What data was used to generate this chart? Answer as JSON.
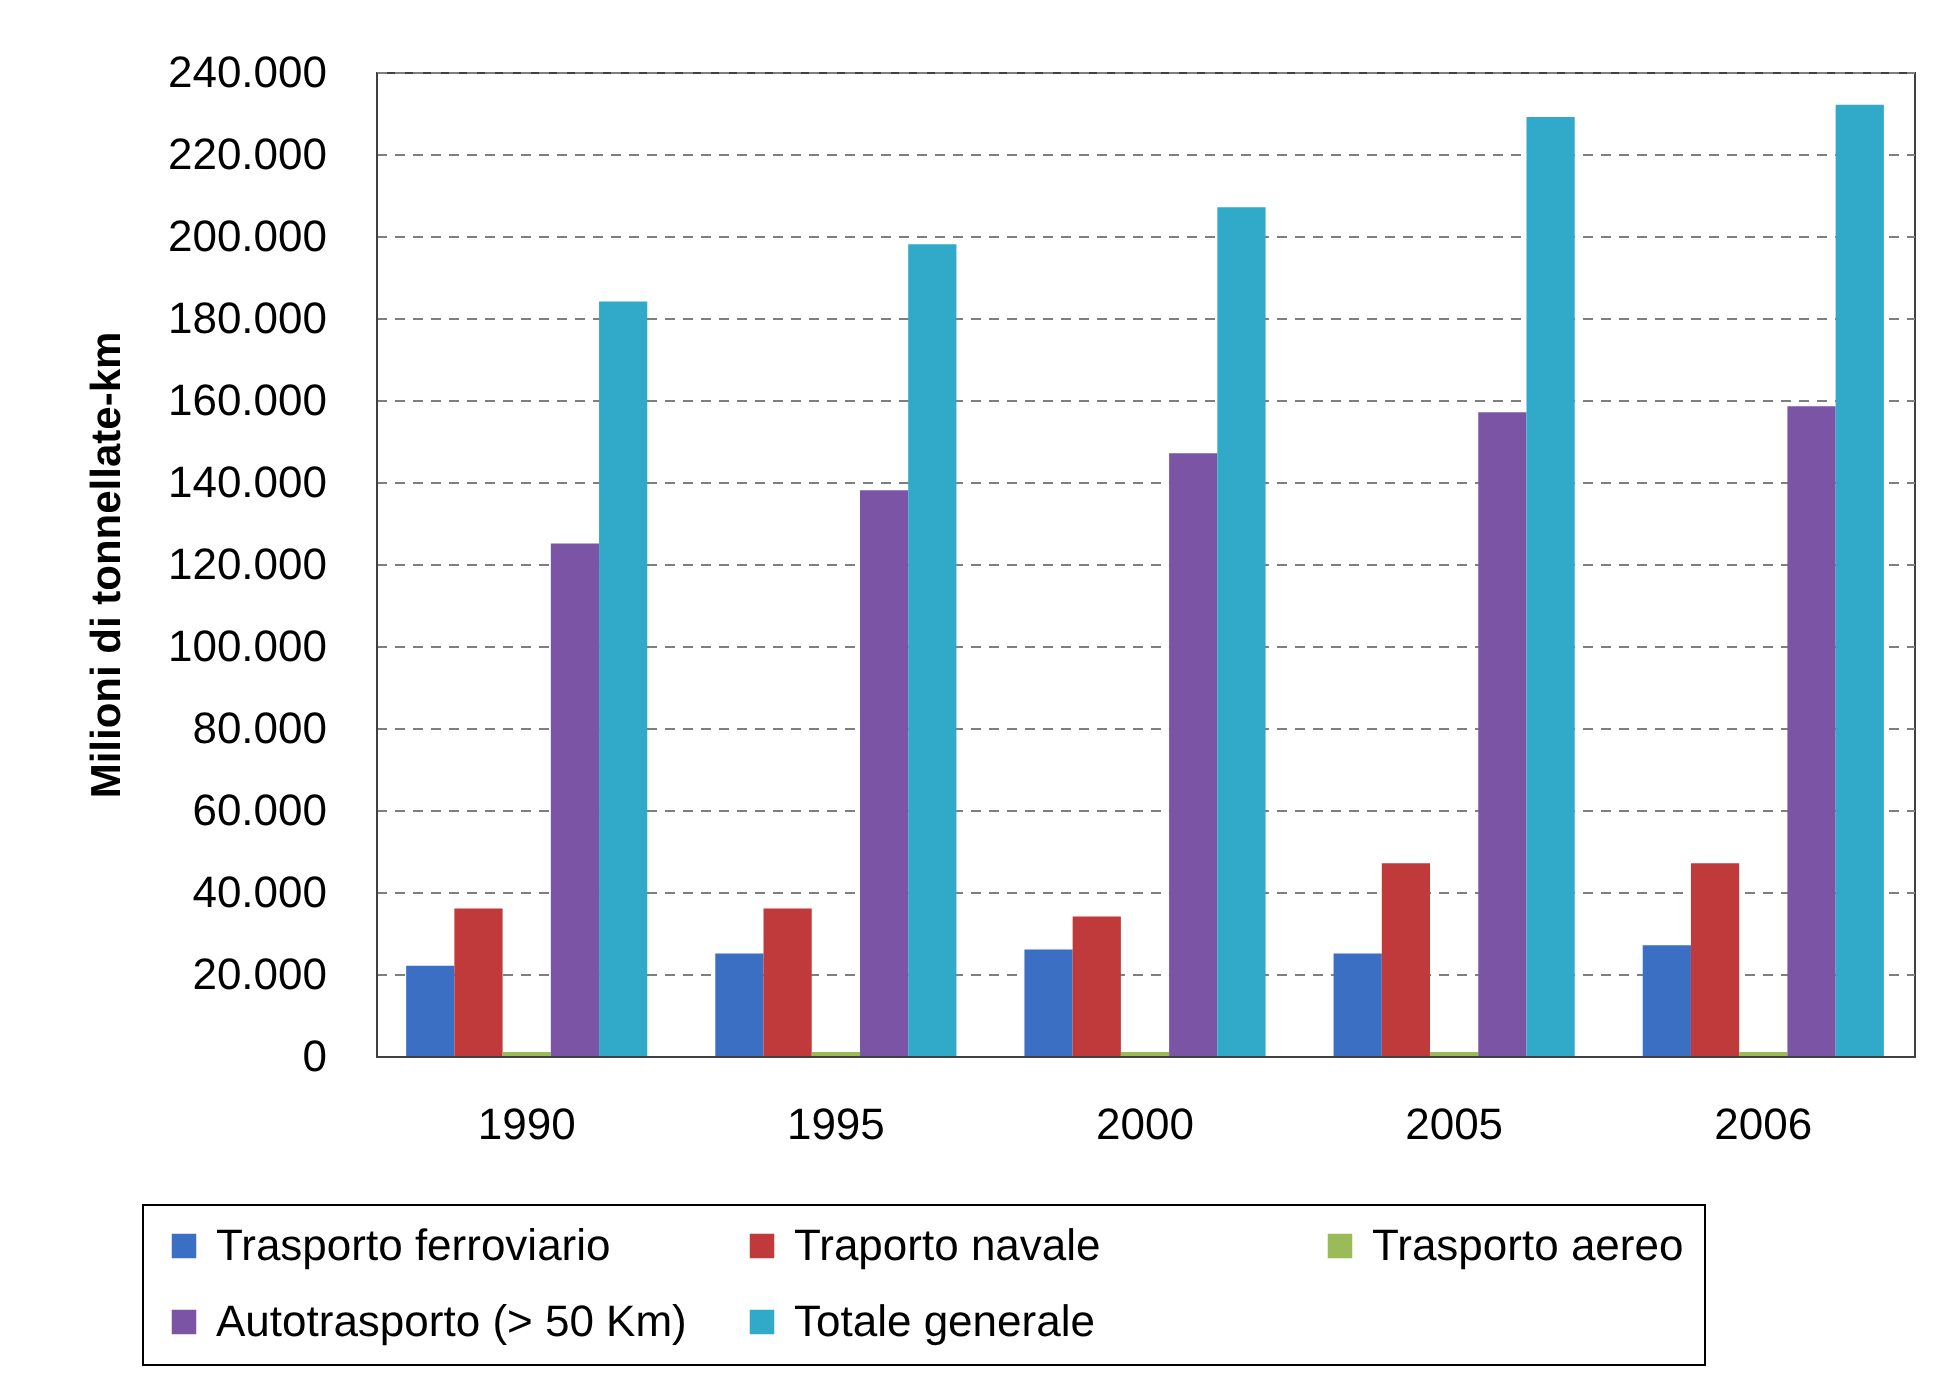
{
  "chart_data": {
    "type": "bar",
    "ylabel": "Milioni di tonnellate-km",
    "categories": [
      "1990",
      "1995",
      "2000",
      "2005",
      "2006"
    ],
    "series": [
      {
        "name": "Trasporto ferroviario",
        "color": "#3a6fc4",
        "values": [
          22000,
          25000,
          26000,
          25000,
          27000
        ]
      },
      {
        "name": "Traporto navale",
        "color": "#c0393b",
        "values": [
          36000,
          36000,
          34000,
          47000,
          47000
        ]
      },
      {
        "name": "Trasporto aereo",
        "color": "#9bbb59",
        "values": [
          1000,
          1000,
          1000,
          1000,
          1000
        ]
      },
      {
        "name": "Autotrasporto (> 50 Km)",
        "color": "#7b54a6",
        "values": [
          125000,
          138000,
          147000,
          157000,
          158500
        ]
      },
      {
        "name": "Totale generale",
        "color": "#31a9c9",
        "values": [
          184000,
          198000,
          207000,
          229000,
          232000
        ]
      }
    ],
    "ylim": [
      0,
      240000
    ],
    "yticks": [
      0,
      {
        "value": 20000,
        "label": "20.000"
      },
      {
        "value": 40000,
        "label": "40.000"
      },
      {
        "value": 60000,
        "label": "60.000"
      },
      {
        "value": 80000,
        "label": "80.000"
      },
      {
        "value": 100000,
        "label": "100.000"
      },
      {
        "value": 120000,
        "label": "120.000"
      },
      {
        "value": 140000,
        "label": "140.000"
      },
      {
        "value": 160000,
        "label": "160.000"
      },
      {
        "value": 180000,
        "label": "180.000"
      },
      {
        "value": 200000,
        "label": "200.000"
      },
      {
        "value": 220000,
        "label": "220.000"
      },
      {
        "value": 240000,
        "label": "240.000"
      }
    ],
    "grid": "y",
    "legend": "bottom"
  }
}
